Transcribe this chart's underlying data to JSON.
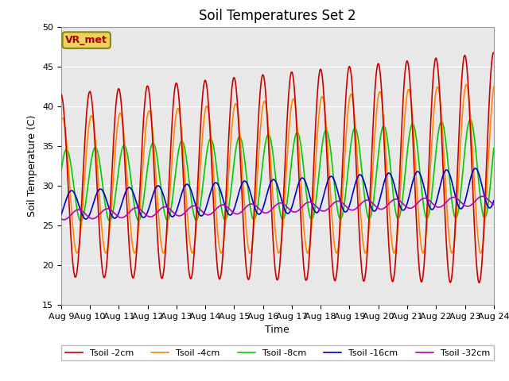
{
  "title": "Soil Temperatures Set 2",
  "xlabel": "Time",
  "ylabel": "Soil Temperature (C)",
  "ylim": [
    15,
    50
  ],
  "days": 15,
  "xtick_labels": [
    "Aug 9",
    "Aug 10",
    "Aug 11",
    "Aug 12",
    "Aug 13",
    "Aug 14",
    "Aug 15",
    "Aug 16",
    "Aug 17",
    "Aug 18",
    "Aug 19",
    "Aug 20",
    "Aug 21",
    "Aug 22",
    "Aug 23",
    "Aug 24"
  ],
  "ytick_values": [
    15,
    20,
    25,
    30,
    35,
    40,
    45,
    50
  ],
  "bg_color": "#e8e8e8",
  "fig_color": "#ffffff",
  "line_colors": {
    "2cm": "#cc0000",
    "4cm": "#ff8800",
    "8cm": "#00cc00",
    "16cm": "#0000cc",
    "32cm": "#bb00bb"
  },
  "legend_labels": [
    "Tsoil -2cm",
    "Tsoil -4cm",
    "Tsoil -8cm",
    "Tsoil -16cm",
    "Tsoil -32cm"
  ],
  "vr_met_text": "VR_met",
  "vr_met_color": "#aa0000",
  "vr_met_bg": "#f0d060",
  "vr_met_border": "#888800",
  "n_points": 1500,
  "title_fontsize": 12,
  "label_fontsize": 9,
  "tick_fontsize": 8
}
